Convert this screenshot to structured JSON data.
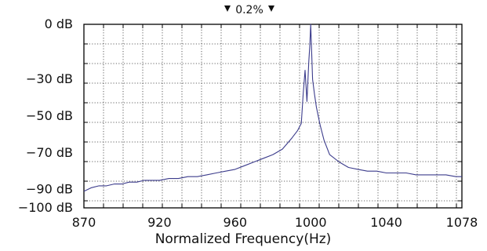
{
  "chart_data": {
    "type": "line",
    "title": "",
    "annotation": "0.2%",
    "xlabel": "Normalized Frequency(Hz)",
    "ylabel": "",
    "xlim": [
      870,
      1078
    ],
    "ylim": [
      -100,
      0
    ],
    "x_ticks": [
      870,
      920,
      960,
      1000,
      1040,
      1078
    ],
    "x_tick_labels": [
      "870",
      "920",
      "960",
      "1000",
      "1040",
      "1078"
    ],
    "y_ticks": [
      0,
      -30,
      -50,
      -70,
      -90,
      -100
    ],
    "y_tick_labels": [
      "0 dB",
      "−30 dB",
      "−50 dB",
      "−70 dB",
      "−90 dB",
      "−100 dB"
    ],
    "grid": true,
    "series_color": "#3c3c8c",
    "series": [
      {
        "x": [
          870,
          875,
          880,
          885,
          890,
          895,
          900,
          905,
          910,
          915,
          920,
          925,
          930,
          935,
          940,
          945,
          950,
          955,
          960,
          965,
          970,
          975,
          980,
          985,
          990,
          993,
          995,
          996,
          997,
          998,
          999,
          999.5,
          1000,
          1000.5,
          1001,
          1002,
          1003,
          1004,
          1005,
          1007,
          1010,
          1015,
          1020,
          1025,
          1030,
          1035,
          1040,
          1045,
          1050,
          1055,
          1060,
          1065,
          1070,
          1075,
          1078
        ],
        "y": [
          -91,
          -89,
          -88,
          -88,
          -87,
          -87,
          -86,
          -86,
          -85,
          -85,
          -85,
          -84,
          -84,
          -83,
          -83,
          -82,
          -81,
          -80,
          -79,
          -77,
          -75,
          -73,
          -71,
          -68,
          -62,
          -58,
          -54,
          -38,
          -25,
          -42,
          -20,
          -12,
          0,
          -15,
          -30,
          -38,
          -45,
          -50,
          -55,
          -63,
          -71,
          -75,
          -78,
          -79,
          -80,
          -80,
          -81,
          -81,
          -81,
          -82,
          -82,
          -82,
          -82,
          -83,
          -83
        ]
      }
    ]
  }
}
